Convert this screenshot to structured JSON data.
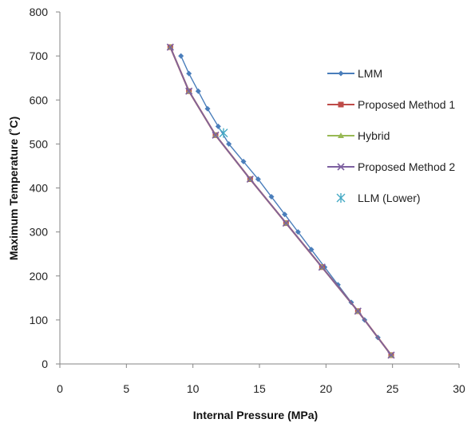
{
  "chart_data": {
    "type": "line",
    "xlabel": "Internal Pressure (MPa)",
    "ylabel": "Maximum Temperature (˚C)",
    "xlim": [
      0,
      30
    ],
    "ylim": [
      0,
      800
    ],
    "xticks": [
      0,
      5,
      10,
      15,
      20,
      25,
      30
    ],
    "yticks": [
      0,
      100,
      200,
      300,
      400,
      500,
      600,
      700,
      800
    ],
    "grid": false,
    "legend_position": "right",
    "series": [
      {
        "name": "LMM",
        "color": "#4a7ebb",
        "marker": "diamond",
        "x": [
          9.1,
          9.7,
          10.4,
          11.1,
          11.9,
          12.7,
          13.8,
          14.9,
          15.9,
          16.9,
          17.9,
          18.9,
          19.9,
          20.9,
          21.9,
          22.9,
          23.9,
          24.9
        ],
        "y": [
          700,
          660,
          620,
          580,
          540,
          500,
          460,
          420,
          380,
          340,
          300,
          260,
          220,
          180,
          140,
          100,
          60,
          20
        ]
      },
      {
        "name": "Proposed Method 1",
        "color": "#be4b48",
        "marker": "square",
        "x": [
          8.3,
          9.7,
          11.7,
          14.3,
          17.0,
          19.7,
          22.4,
          24.9
        ],
        "y": [
          720,
          620,
          520,
          420,
          320,
          220,
          120,
          20
        ]
      },
      {
        "name": "Hybrid",
        "color": "#98b954",
        "marker": "triangle",
        "x": [
          8.3,
          9.7,
          11.7,
          14.3,
          17.0,
          19.7,
          22.4,
          24.9
        ],
        "y": [
          720,
          620,
          520,
          420,
          320,
          220,
          120,
          20
        ]
      },
      {
        "name": "Proposed Method 2",
        "color": "#7d60a0",
        "marker": "x",
        "x": [
          8.3,
          9.7,
          11.7,
          14.3,
          17.0,
          19.7,
          22.4,
          24.9
        ],
        "y": [
          720,
          620,
          520,
          420,
          320,
          220,
          120,
          20
        ]
      },
      {
        "name": "LLM (Lower)",
        "color": "#46aac5",
        "marker": "star",
        "x": [
          12.3
        ],
        "y": [
          525
        ]
      }
    ]
  }
}
